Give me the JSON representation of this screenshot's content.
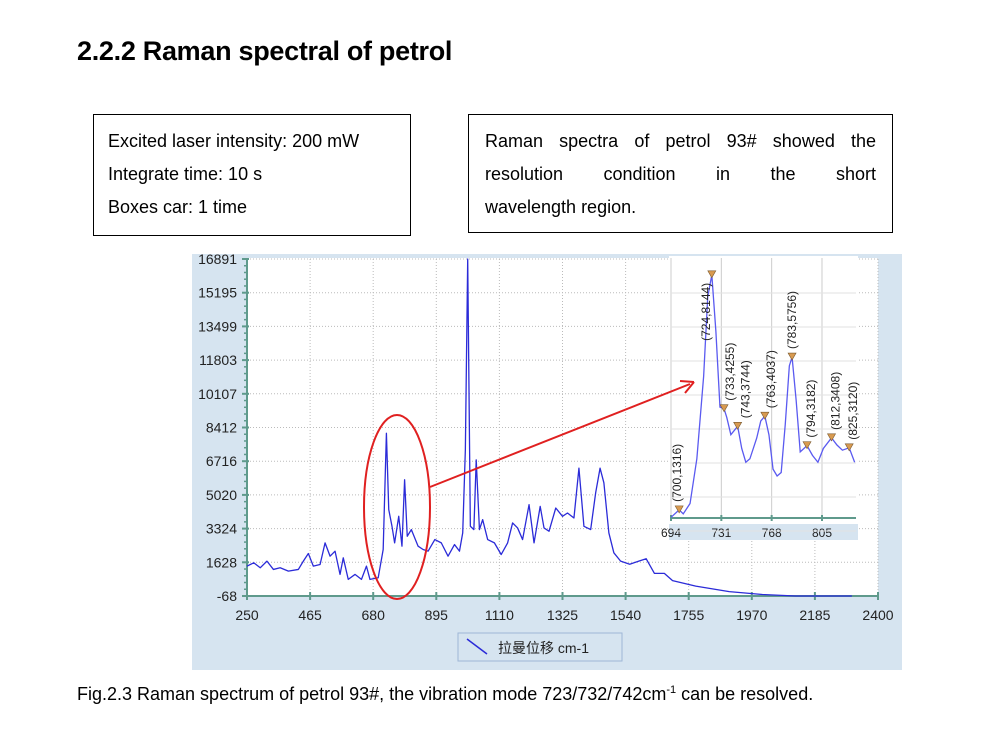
{
  "title": "2.2.2 Raman spectral of petrol",
  "params_box": {
    "lines": [
      "Excited laser intensity: 200 mW",
      "Integrate time: 10 s",
      "Boxes car: 1 time"
    ]
  },
  "note_box": {
    "lines": [
      "Raman spectra of petrol 93# showed the",
      "resolution condition in the short",
      "wavelength region."
    ]
  },
  "caption": {
    "text": "Fig.2.3 Raman spectrum of petrol 93#, the vibration mode 723/732/742cm",
    "superscript": "-1",
    "suffix": " can be resolved."
  },
  "colors": {
    "series": "#2b2bd8",
    "annotation": "#e02020",
    "axis": "#5f9a8c",
    "panel": "#d6e4f0",
    "marker": "#d89a50"
  },
  "chart_data": [
    {
      "type": "line",
      "xlim": [
        250,
        2400
      ],
      "ylim": [
        -68,
        16891
      ],
      "x_ticks": [
        "250",
        "465",
        "680",
        "895",
        "1110",
        "1325",
        "1540",
        "1755",
        "1970",
        "2185",
        "2400"
      ],
      "y_ticks": [
        "16891",
        "15195",
        "13499",
        "11803",
        "10107",
        "8412",
        "6716",
        "5020",
        "3324",
        "1628",
        "-68"
      ],
      "grid": true,
      "legend_position": "bottom-center",
      "series": [
        {
          "name": "拉曼位移 cm-1",
          "points": [
            [
              250,
              1436
            ],
            [
              273,
              1603
            ],
            [
              295,
              1352
            ],
            [
              318,
              1686
            ],
            [
              340,
              1269
            ],
            [
              363,
              1352
            ],
            [
              391,
              1185
            ],
            [
              425,
              1269
            ],
            [
              442,
              1686
            ],
            [
              459,
              2070
            ],
            [
              476,
              1436
            ],
            [
              499,
              1519
            ],
            [
              516,
              2605
            ],
            [
              533,
              1937
            ],
            [
              550,
              2188
            ],
            [
              567,
              1018
            ],
            [
              578,
              1853
            ],
            [
              595,
              767
            ],
            [
              618,
              1018
            ],
            [
              640,
              767
            ],
            [
              657,
              1436
            ],
            [
              669,
              767
            ],
            [
              697,
              851
            ],
            [
              714,
              2271
            ],
            [
              725,
              8119
            ],
            [
              733,
              4276
            ],
            [
              744,
              3440
            ],
            [
              753,
              2605
            ],
            [
              767,
              3942
            ],
            [
              778,
              2438
            ],
            [
              787,
              5780
            ],
            [
              796,
              2940
            ],
            [
              810,
              3274
            ],
            [
              833,
              2438
            ],
            [
              850,
              2271
            ],
            [
              867,
              2188
            ],
            [
              890,
              2772
            ],
            [
              912,
              2605
            ],
            [
              935,
              1937
            ],
            [
              957,
              2521
            ],
            [
              974,
              2188
            ],
            [
              985,
              3107
            ],
            [
              994,
              7284
            ],
            [
              1002,
              16891
            ],
            [
              1011,
              3441
            ],
            [
              1023,
              3274
            ],
            [
              1031,
              6783
            ],
            [
              1042,
              3274
            ],
            [
              1053,
              3775
            ],
            [
              1070,
              2772
            ],
            [
              1093,
              2605
            ],
            [
              1116,
              2020
            ],
            [
              1138,
              2605
            ],
            [
              1155,
              3608
            ],
            [
              1172,
              3357
            ],
            [
              1189,
              2772
            ],
            [
              1211,
              4527
            ],
            [
              1228,
              2605
            ],
            [
              1249,
              4443
            ],
            [
              1262,
              3357
            ],
            [
              1279,
              3190
            ],
            [
              1302,
              4360
            ],
            [
              1325,
              3942
            ],
            [
              1342,
              4109
            ],
            [
              1364,
              3858
            ],
            [
              1381,
              6365
            ],
            [
              1398,
              3441
            ],
            [
              1421,
              3274
            ],
            [
              1438,
              5126
            ],
            [
              1453,
              6365
            ],
            [
              1466,
              5628
            ],
            [
              1483,
              3107
            ],
            [
              1500,
              2104
            ],
            [
              1523,
              1686
            ],
            [
              1554,
              1532
            ],
            [
              1585,
              1686
            ],
            [
              1610,
              1808
            ],
            [
              1638,
              1072
            ],
            [
              1672,
              1072
            ],
            [
              1700,
              705
            ],
            [
              1779,
              429
            ],
            [
              1893,
              153
            ],
            [
              2006,
              6
            ],
            [
              2119,
              -68
            ],
            [
              2311,
              -68
            ]
          ]
        }
      ]
    },
    {
      "type": "line",
      "xlim": [
        694,
        830
      ],
      "ylim": [
        1080,
        8400
      ],
      "x_ticks": [
        "694",
        "731",
        "768",
        "805"
      ],
      "grid": true,
      "series": [
        {
          "points": [
            [
              694,
              1100
            ],
            [
              700,
              1316
            ],
            [
              703,
              1200
            ],
            [
              708,
              1500
            ],
            [
              713,
              2800
            ],
            [
              718,
              5200
            ],
            [
              721,
              7500
            ],
            [
              724,
              8144
            ],
            [
              727,
              6500
            ],
            [
              730,
              4300
            ],
            [
              733,
              4255
            ],
            [
              735,
              4000
            ],
            [
              738,
              3500
            ],
            [
              743,
              3744
            ],
            [
              746,
              3100
            ],
            [
              749,
              2700
            ],
            [
              752,
              2800
            ],
            [
              757,
              3400
            ],
            [
              760,
              3900
            ],
            [
              763,
              4037
            ],
            [
              766,
              3500
            ],
            [
              769,
              2500
            ],
            [
              772,
              2300
            ],
            [
              775,
              2400
            ],
            [
              778,
              3800
            ],
            [
              781,
              5500
            ],
            [
              783,
              5756
            ],
            [
              786,
              4500
            ],
            [
              789,
              3000
            ],
            [
              794,
              3182
            ],
            [
              798,
              2900
            ],
            [
              802,
              2700
            ],
            [
              806,
              3100
            ],
            [
              812,
              3408
            ],
            [
              816,
              3200
            ],
            [
              820,
              3050
            ],
            [
              825,
              3120
            ],
            [
              829,
              2700
            ]
          ]
        }
      ],
      "peak_labels": [
        {
          "x": 700,
          "y": 1316,
          "text": "(700,1316)"
        },
        {
          "x": 724,
          "y": 8144,
          "text": "(724,8144)"
        },
        {
          "x": 733,
          "y": 4255,
          "text": "(733,4255)"
        },
        {
          "x": 743,
          "y": 3744,
          "text": "(743,3744)"
        },
        {
          "x": 763,
          "y": 4037,
          "text": "(763,4037)"
        },
        {
          "x": 783,
          "y": 5756,
          "text": "(783,5756)"
        },
        {
          "x": 794,
          "y": 3182,
          "text": "(794,3182)"
        },
        {
          "x": 812,
          "y": 3408,
          "text": "(812,3408)"
        },
        {
          "x": 825,
          "y": 3120,
          "text": "(825,3120)"
        }
      ]
    }
  ]
}
